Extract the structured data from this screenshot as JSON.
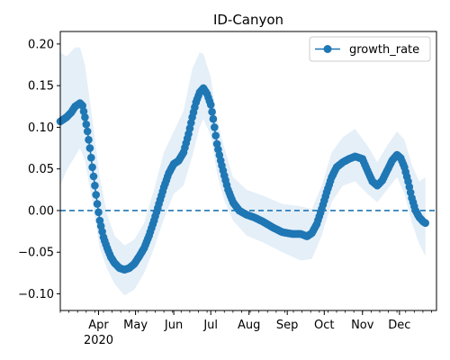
{
  "chart_data": {
    "type": "line",
    "title": "ID-Canyon",
    "xlabel": "",
    "ylabel": "",
    "ylim": [
      -0.12,
      0.215
    ],
    "xlim": [
      "2020-03-01",
      "2020-12-31"
    ],
    "yticks": [
      -0.1,
      -0.05,
      0.0,
      0.05,
      0.1,
      0.15,
      0.2
    ],
    "ytick_labels": [
      "−0.10",
      "−0.05",
      "0.00",
      "0.05",
      "0.10",
      "0.15",
      "0.20"
    ],
    "xticks": [
      {
        "date": "2020-04-01",
        "label": "Apr"
      },
      {
        "date": "2020-05-01",
        "label": "May"
      },
      {
        "date": "2020-06-01",
        "label": "Jun"
      },
      {
        "date": "2020-07-01",
        "label": "Jul"
      },
      {
        "date": "2020-08-01",
        "label": "Aug"
      },
      {
        "date": "2020-09-01",
        "label": "Sep"
      },
      {
        "date": "2020-10-01",
        "label": "Oct"
      },
      {
        "date": "2020-11-01",
        "label": "Nov"
      },
      {
        "date": "2020-12-01",
        "label": "Dec"
      }
    ],
    "x_year_label": "2020",
    "reference_line": {
      "y": 0.0,
      "style": "dashed"
    },
    "legend": {
      "position": "top-right",
      "entries": [
        "growth_rate"
      ]
    },
    "colors": {
      "line": "#1f77b4",
      "band": "#dce9f5",
      "reference": "#1f77b4"
    },
    "series": [
      {
        "name": "growth_rate",
        "marker": "circle",
        "points": [
          [
            "2020-03-01",
            0.107
          ],
          [
            "2020-03-06",
            0.112
          ],
          [
            "2020-03-10",
            0.118
          ],
          [
            "2020-03-13",
            0.125
          ],
          [
            "2020-03-17",
            0.129
          ],
          [
            "2020-03-19",
            0.126
          ],
          [
            "2020-03-21",
            0.112
          ],
          [
            "2020-03-23",
            0.095
          ],
          [
            "2020-03-25",
            0.075
          ],
          [
            "2020-03-27",
            0.052
          ],
          [
            "2020-03-29",
            0.03
          ],
          [
            "2020-03-31",
            0.008
          ],
          [
            "2020-04-02",
            -0.012
          ],
          [
            "2020-04-05",
            -0.032
          ],
          [
            "2020-04-08",
            -0.045
          ],
          [
            "2020-04-11",
            -0.056
          ],
          [
            "2020-04-14",
            -0.063
          ],
          [
            "2020-04-18",
            -0.069
          ],
          [
            "2020-04-22",
            -0.071
          ],
          [
            "2020-04-26",
            -0.069
          ],
          [
            "2020-04-30",
            -0.064
          ],
          [
            "2020-05-04",
            -0.055
          ],
          [
            "2020-05-08",
            -0.045
          ],
          [
            "2020-05-12",
            -0.03
          ],
          [
            "2020-05-16",
            -0.012
          ],
          [
            "2020-05-20",
            0.008
          ],
          [
            "2020-05-24",
            0.028
          ],
          [
            "2020-05-28",
            0.045
          ],
          [
            "2020-06-01",
            0.056
          ],
          [
            "2020-06-05",
            0.06
          ],
          [
            "2020-06-09",
            0.07
          ],
          [
            "2020-06-13",
            0.092
          ],
          [
            "2020-06-16",
            0.112
          ],
          [
            "2020-06-19",
            0.13
          ],
          [
            "2020-06-22",
            0.142
          ],
          [
            "2020-06-25",
            0.147
          ],
          [
            "2020-06-28",
            0.14
          ],
          [
            "2020-07-01",
            0.127
          ],
          [
            "2020-07-03",
            0.11
          ],
          [
            "2020-07-06",
            0.08
          ],
          [
            "2020-07-09",
            0.06
          ],
          [
            "2020-07-12",
            0.042
          ],
          [
            "2020-07-15",
            0.025
          ],
          [
            "2020-07-19",
            0.01
          ],
          [
            "2020-07-24",
            0.0
          ],
          [
            "2020-07-30",
            -0.005
          ],
          [
            "2020-08-05",
            -0.008
          ],
          [
            "2020-08-12",
            -0.013
          ],
          [
            "2020-08-20",
            -0.02
          ],
          [
            "2020-08-28",
            -0.026
          ],
          [
            "2020-09-05",
            -0.028
          ],
          [
            "2020-09-12",
            -0.028
          ],
          [
            "2020-09-17",
            -0.031
          ],
          [
            "2020-09-21",
            -0.027
          ],
          [
            "2020-09-25",
            -0.016
          ],
          [
            "2020-09-29",
            0.002
          ],
          [
            "2020-10-03",
            0.022
          ],
          [
            "2020-10-07",
            0.04
          ],
          [
            "2020-10-11",
            0.052
          ],
          [
            "2020-10-16",
            0.058
          ],
          [
            "2020-10-21",
            0.062
          ],
          [
            "2020-10-26",
            0.065
          ],
          [
            "2020-11-01",
            0.062
          ],
          [
            "2020-11-05",
            0.048
          ],
          [
            "2020-11-09",
            0.035
          ],
          [
            "2020-11-13",
            0.03
          ],
          [
            "2020-11-17",
            0.036
          ],
          [
            "2020-11-21",
            0.048
          ],
          [
            "2020-11-25",
            0.06
          ],
          [
            "2020-11-29",
            0.067
          ],
          [
            "2020-12-02",
            0.063
          ],
          [
            "2020-12-05",
            0.052
          ],
          [
            "2020-12-08",
            0.035
          ],
          [
            "2020-12-11",
            0.015
          ],
          [
            "2020-12-14",
            0.0
          ],
          [
            "2020-12-17",
            -0.008
          ],
          [
            "2020-12-20",
            -0.013
          ],
          [
            "2020-12-22",
            -0.015
          ]
        ],
        "band": [
          [
            "2020-03-01",
            0.03,
            0.19
          ],
          [
            "2020-03-06",
            0.048,
            0.185
          ],
          [
            "2020-03-13",
            0.065,
            0.196
          ],
          [
            "2020-03-17",
            0.075,
            0.196
          ],
          [
            "2020-03-21",
            0.06,
            0.175
          ],
          [
            "2020-03-27",
            0.01,
            0.11
          ],
          [
            "2020-04-02",
            -0.045,
            0.04
          ],
          [
            "2020-04-08",
            -0.07,
            -0.005
          ],
          [
            "2020-04-14",
            -0.088,
            -0.03
          ],
          [
            "2020-04-22",
            -0.102,
            -0.042
          ],
          [
            "2020-04-30",
            -0.095,
            -0.035
          ],
          [
            "2020-05-08",
            -0.075,
            -0.015
          ],
          [
            "2020-05-16",
            -0.045,
            0.025
          ],
          [
            "2020-05-24",
            -0.01,
            0.07
          ],
          [
            "2020-06-01",
            0.02,
            0.095
          ],
          [
            "2020-06-09",
            0.03,
            0.12
          ],
          [
            "2020-06-16",
            0.065,
            0.17
          ],
          [
            "2020-06-22",
            0.1,
            0.19
          ],
          [
            "2020-06-25",
            0.11,
            0.188
          ],
          [
            "2020-07-01",
            0.09,
            0.16
          ],
          [
            "2020-07-06",
            0.045,
            0.11
          ],
          [
            "2020-07-12",
            0.012,
            0.075
          ],
          [
            "2020-07-19",
            -0.012,
            0.04
          ],
          [
            "2020-07-30",
            -0.03,
            0.025
          ],
          [
            "2020-08-12",
            -0.038,
            0.018
          ],
          [
            "2020-08-28",
            -0.05,
            0.008
          ],
          [
            "2020-09-12",
            -0.06,
            0.005
          ],
          [
            "2020-09-21",
            -0.058,
            0.002
          ],
          [
            "2020-09-29",
            -0.03,
            0.03
          ],
          [
            "2020-10-07",
            0.01,
            0.07
          ],
          [
            "2020-10-16",
            0.03,
            0.088
          ],
          [
            "2020-10-26",
            0.035,
            0.098
          ],
          [
            "2020-11-05",
            0.02,
            0.078
          ],
          [
            "2020-11-13",
            0.01,
            0.058
          ],
          [
            "2020-11-21",
            0.025,
            0.078
          ],
          [
            "2020-11-29",
            0.04,
            0.095
          ],
          [
            "2020-12-05",
            0.02,
            0.085
          ],
          [
            "2020-12-11",
            -0.015,
            0.055
          ],
          [
            "2020-12-17",
            -0.04,
            0.035
          ],
          [
            "2020-12-22",
            -0.055,
            0.04
          ]
        ]
      }
    ]
  }
}
